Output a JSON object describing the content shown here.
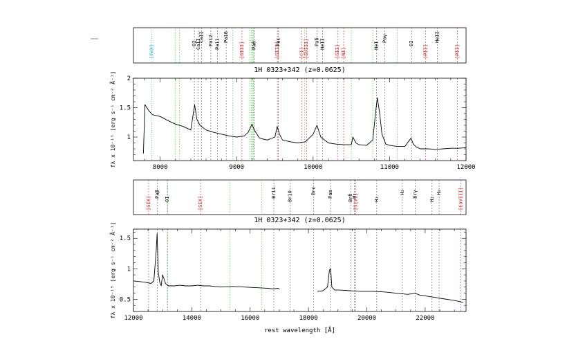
{
  "chart_data": [
    {
      "type": "line",
      "title": "1H 0323+342 (z=0.0625)",
      "xlabel": "",
      "ylabel": "fλ x 10⁻¹⁵ [erg s⁻¹ cm⁻² Å⁻¹]",
      "xlim": [
        7650,
        12000
      ],
      "ylim": [
        0.6,
        2.0
      ],
      "xticks": [
        8000,
        9000,
        10000,
        11000,
        12000
      ],
      "yticks": [
        1,
        1.5,
        2
      ],
      "series": [
        {
          "color": "#000000",
          "x": [
            7780,
            7800,
            7850,
            7900,
            8000,
            8100,
            8200,
            8300,
            8400,
            8450,
            8480,
            8520,
            8600,
            8700,
            8800,
            8900,
            9000,
            9100,
            9150,
            9200,
            9230,
            9300,
            9400,
            9500,
            9530,
            9560,
            9600,
            9700,
            9800,
            9900,
            10000,
            10050,
            10100,
            10200,
            10300,
            10400,
            10500,
            10520,
            10560,
            10600,
            10700,
            10780,
            10820,
            10840,
            10870,
            10900,
            10950,
            11000,
            11100,
            11200,
            11280,
            11310,
            11350,
            11400,
            11500,
            11600,
            11700,
            11800,
            11900,
            12000
          ],
          "y": [
            0.72,
            1.55,
            1.45,
            1.38,
            1.35,
            1.28,
            1.22,
            1.18,
            1.12,
            1.55,
            1.3,
            1.2,
            1.12,
            1.08,
            1.05,
            1.02,
            1.0,
            1.02,
            1.08,
            1.22,
            1.12,
            0.98,
            0.95,
            1.0,
            1.18,
            1.05,
            0.95,
            0.92,
            0.9,
            0.92,
            1.05,
            1.2,
            1.0,
            0.9,
            0.88,
            0.87,
            0.87,
            1.0,
            0.9,
            0.87,
            0.86,
            0.95,
            1.45,
            1.67,
            1.4,
            1.05,
            0.88,
            0.86,
            0.84,
            0.84,
            0.98,
            0.88,
            0.83,
            0.8,
            0.8,
            0.79,
            0.8,
            0.81,
            0.81,
            0.82
          ]
        }
      ],
      "line_markers": [
        {
          "label": "[FeX]",
          "x": 7890,
          "color": "#00b4d8",
          "style": "dotted"
        },
        {
          "label": "OI",
          "x": 8446,
          "color": "#000000",
          "style": "dashed"
        },
        {
          "label": "CaII",
          "x": 8498,
          "color": "#000000",
          "style": "dashed"
        },
        {
          "label": "CaII",
          "x": 8542,
          "color": "#000000",
          "style": "dashed"
        },
        {
          "label": "Pa12",
          "x": 8662,
          "color": "#000000",
          "style": "dashed"
        },
        {
          "label": "Pa11",
          "x": 8750,
          "color": "#000000",
          "style": "dashed"
        },
        {
          "label": "Pa10",
          "x": 8863,
          "color": "#000000",
          "style": "dashed"
        },
        {
          "label": "[SIII]",
          "x": 9069,
          "color": "#e02020",
          "style": "dashed"
        },
        {
          "label": "Paθ",
          "x": 9229,
          "color": "#000000",
          "style": "dashed"
        },
        {
          "label": "[SIII]",
          "x": 9532,
          "color": "#e02020",
          "style": "dashed"
        },
        {
          "label": "Paε",
          "x": 9546,
          "color": "#000000",
          "style": "dashed"
        },
        {
          "label": "[CI]",
          "x": 9850,
          "color": "#e02020",
          "style": "dashed"
        },
        {
          "label": "[SVIII]",
          "x": 9913,
          "color": "#e02020",
          "style": "dashed"
        },
        {
          "label": "Paδ",
          "x": 10049,
          "color": "#000000",
          "style": "dashed"
        },
        {
          "label": "HeII",
          "x": 10124,
          "color": "#000000",
          "style": "dashed"
        },
        {
          "label": "[SII]",
          "x": 10320,
          "color": "#e02020",
          "style": "dashed"
        },
        {
          "label": "[NI]",
          "x": 10400,
          "color": "#e02020",
          "style": "dashed"
        },
        {
          "label": "HeI",
          "x": 10830,
          "color": "#000000",
          "style": "dashed"
        },
        {
          "label": "Paγ",
          "x": 10938,
          "color": "#000000",
          "style": "dashed"
        },
        {
          "label": "OI",
          "x": 11287,
          "color": "#000000",
          "style": "dashed"
        },
        {
          "label": "[PII]",
          "x": 11470,
          "color": "#e02020",
          "style": "dashed"
        },
        {
          "label": "HeII",
          "x": 11626,
          "color": "#000000",
          "style": "dashed"
        },
        {
          "label": "[PII]",
          "x": 11886,
          "color": "#e02020",
          "style": "dashed"
        }
      ],
      "green_lines": [
        8200,
        8250,
        8950,
        9170,
        9190,
        9205,
        9215,
        9225,
        9890,
        10500,
        10780,
        11100
      ]
    },
    {
      "type": "line",
      "title": "1H 0323+342 (z=0.0625)",
      "xlabel": "rest wavelength [Å]",
      "ylabel": "fλ x 10⁻¹⁵ [erg s⁻¹ cm⁻² Å⁻¹]",
      "xlim": [
        12000,
        23400
      ],
      "ylim": [
        0.3,
        1.65
      ],
      "xticks": [
        12000,
        14000,
        16000,
        18000,
        20000,
        22000
      ],
      "yticks": [
        0.5,
        1,
        1.5
      ],
      "series": [
        {
          "color": "#000000",
          "x": [
            12000,
            12200,
            12400,
            12600,
            12700,
            12780,
            12810,
            12850,
            12900,
            12950,
            13000,
            13100,
            13200,
            13400,
            13600,
            13800,
            14000,
            14200,
            14400,
            14600,
            14800,
            15000,
            15400,
            15800,
            16200,
            16600,
            16800,
            16950,
            17000
          ],
          "y": [
            0.8,
            0.79,
            0.78,
            0.76,
            0.8,
            1.3,
            1.58,
            0.95,
            0.78,
            0.72,
            0.9,
            0.76,
            0.72,
            0.72,
            0.73,
            0.72,
            0.72,
            0.73,
            0.72,
            0.72,
            0.71,
            0.7,
            0.71,
            0.7,
            0.69,
            0.68,
            0.67,
            0.68,
            0.67
          ]
        },
        {
          "color": "#000000",
          "x": [
            18300,
            18500,
            18650,
            18720,
            18760,
            18800,
            18900,
            19100,
            19400,
            19800,
            20200,
            20600,
            21000,
            21400,
            21660,
            21800,
            22200,
            22600,
            23000,
            23300
          ],
          "y": [
            0.63,
            0.64,
            0.7,
            0.98,
            1.0,
            0.7,
            0.65,
            0.65,
            0.64,
            0.63,
            0.63,
            0.62,
            0.6,
            0.58,
            0.6,
            0.57,
            0.54,
            0.51,
            0.48,
            0.45
          ]
        }
      ],
      "line_markers": [
        {
          "label": "[SIX]",
          "x": 12520,
          "color": "#e02020",
          "style": "dashed"
        },
        {
          "label": "Paβ",
          "x": 12818,
          "color": "#000000",
          "style": "dashed"
        },
        {
          "label": "OI",
          "x": 13165,
          "color": "#000000",
          "style": "dashed"
        },
        {
          "label": "[SIX]",
          "x": 14300,
          "color": "#e02020",
          "style": "dashed"
        },
        {
          "label": "Br11",
          "x": 16811,
          "color": "#000000",
          "style": "dashed"
        },
        {
          "label": "Br10",
          "x": 17367,
          "color": "#000000",
          "style": "dashed"
        },
        {
          "label": "Brε",
          "x": 18174,
          "color": "#000000",
          "style": "dashed"
        },
        {
          "label": "Paα",
          "x": 18751,
          "color": "#000000",
          "style": "dashed"
        },
        {
          "label": "Brδ",
          "x": 19446,
          "color": "#000000",
          "style": "dashed"
        },
        {
          "label": "[SiVI]",
          "x": 19620,
          "color": "#e02020",
          "style": "dashed"
        },
        {
          "label": "H₂",
          "x": 19570,
          "color": "#000000",
          "style": "dashed"
        },
        {
          "label": "H₂",
          "x": 20338,
          "color": "#000000",
          "style": "dashed"
        },
        {
          "label": "H₂",
          "x": 21218,
          "color": "#000000",
          "style": "dashed"
        },
        {
          "label": "Brγ",
          "x": 21661,
          "color": "#000000",
          "style": "dashed"
        },
        {
          "label": "H₂",
          "x": 22233,
          "color": "#000000",
          "style": "dashed"
        },
        {
          "label": "H₂",
          "x": 22477,
          "color": "#000000",
          "style": "dashed"
        },
        {
          "label": "[CaVIII]",
          "x": 23218,
          "color": "#e02020",
          "style": "dashed"
        }
      ],
      "green_lines": [
        13165,
        15300,
        16400
      ]
    }
  ]
}
